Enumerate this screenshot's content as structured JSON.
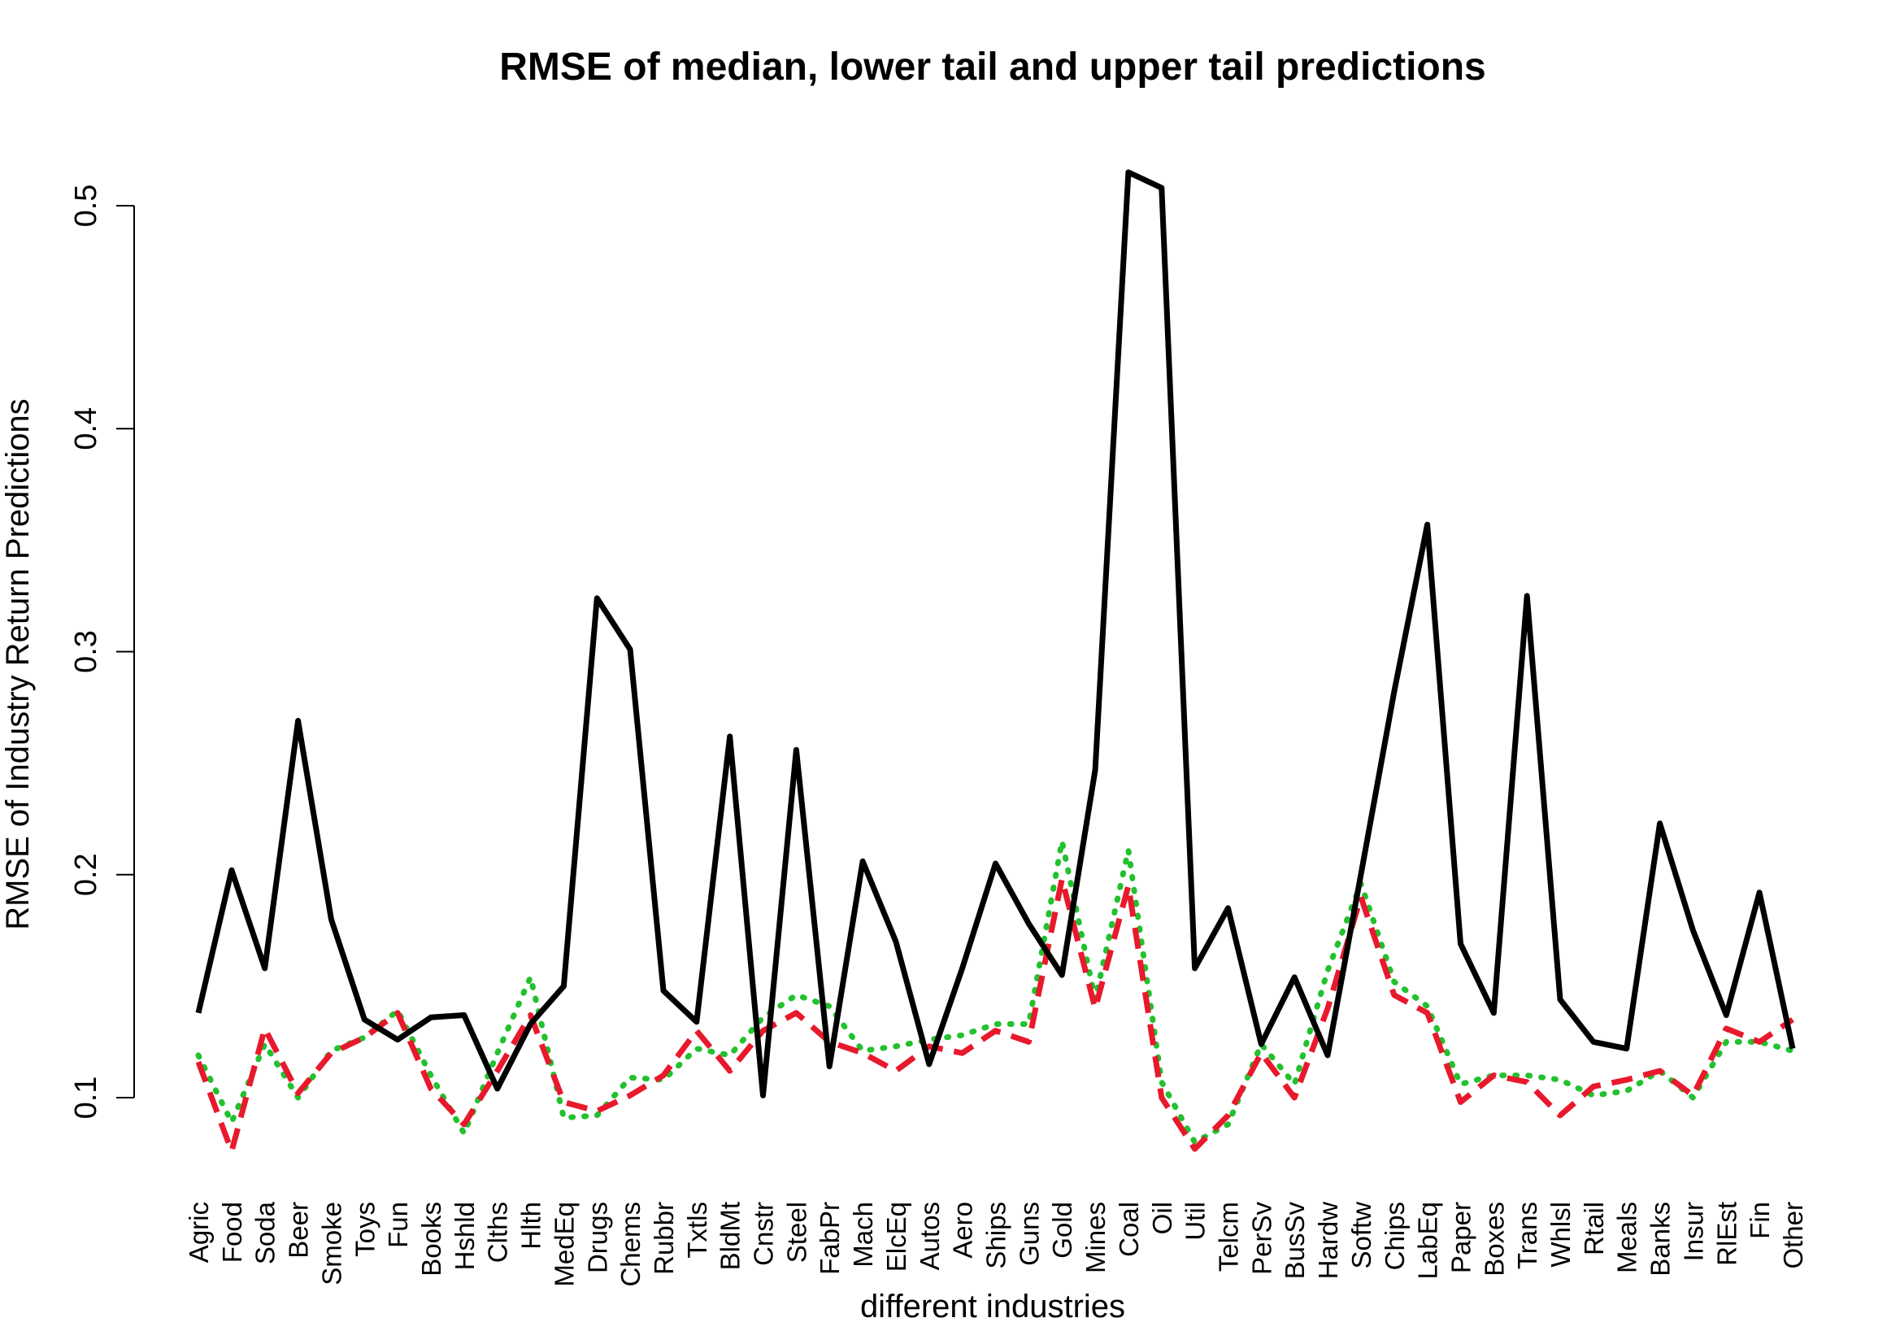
{
  "chart_data": {
    "type": "line",
    "title": "RMSE of median, lower tail and upper tail predictions",
    "xlabel": "different industries",
    "ylabel": "RMSE of Industry Return Predictions",
    "ylim": [
      0.07,
      0.52
    ],
    "yticks": [
      0.1,
      0.2,
      0.3,
      0.4,
      0.5
    ],
    "ytick_labels": [
      "0.1",
      "0.2",
      "0.3",
      "0.4",
      "0.5"
    ],
    "grid": false,
    "legend": "none",
    "categories": [
      "Agric",
      "Food",
      "Soda",
      "Beer",
      "Smoke",
      "Toys",
      "Fun",
      "Books",
      "Hshld",
      "Clths",
      "Hlth",
      "MedEq",
      "Drugs",
      "Chems",
      "Rubbr",
      "Txtls",
      "BldMt",
      "Cnstr",
      "Steel",
      "FabPr",
      "Mach",
      "ElcEq",
      "Autos",
      "Aero",
      "Ships",
      "Guns",
      "Gold",
      "Mines",
      "Coal",
      "Oil",
      "Util",
      "Telcm",
      "PerSv",
      "BusSv",
      "Hardw",
      "Softw",
      "Chips",
      "LabEq",
      "Paper",
      "Boxes",
      "Trans",
      "Whlsl",
      "Rtail",
      "Meals",
      "Banks",
      "Insur",
      "RlEst",
      "Fin",
      "Other"
    ],
    "series": [
      {
        "color": "#000000",
        "style": "solid",
        "values": [
          0.138,
          0.202,
          0.158,
          0.269,
          0.18,
          0.135,
          0.126,
          0.136,
          0.137,
          0.104,
          0.133,
          0.15,
          0.324,
          0.301,
          0.148,
          0.134,
          0.262,
          0.101,
          0.256,
          0.114,
          0.206,
          0.17,
          0.115,
          0.158,
          0.205,
          0.178,
          0.155,
          0.247,
          0.515,
          0.508,
          0.158,
          0.185,
          0.124,
          0.154,
          0.119,
          0.2,
          0.282,
          0.357,
          0.169,
          0.138,
          0.325,
          0.144,
          0.125,
          0.122,
          0.223,
          0.175,
          0.137,
          0.192,
          0.122
        ]
      },
      {
        "color": "#e8192c",
        "style": "dashed",
        "values": [
          0.116,
          0.076,
          0.131,
          0.102,
          0.12,
          0.127,
          0.138,
          0.104,
          0.088,
          0.112,
          0.137,
          0.098,
          0.094,
          0.101,
          0.11,
          0.13,
          0.112,
          0.13,
          0.138,
          0.125,
          0.12,
          0.112,
          0.123,
          0.12,
          0.13,
          0.125,
          0.198,
          0.14,
          0.195,
          0.1,
          0.077,
          0.092,
          0.12,
          0.1,
          0.14,
          0.19,
          0.146,
          0.138,
          0.098,
          0.11,
          0.107,
          0.092,
          0.105,
          0.108,
          0.112,
          0.101,
          0.131,
          0.125,
          0.135
        ]
      },
      {
        "color": "#22c12e",
        "style": "dotted",
        "values": [
          0.119,
          0.089,
          0.124,
          0.1,
          0.121,
          0.127,
          0.139,
          0.11,
          0.084,
          0.12,
          0.154,
          0.091,
          0.092,
          0.109,
          0.108,
          0.122,
          0.119,
          0.136,
          0.146,
          0.141,
          0.121,
          0.123,
          0.126,
          0.128,
          0.133,
          0.133,
          0.215,
          0.144,
          0.211,
          0.107,
          0.08,
          0.088,
          0.124,
          0.106,
          0.157,
          0.196,
          0.152,
          0.141,
          0.106,
          0.11,
          0.11,
          0.108,
          0.101,
          0.103,
          0.112,
          0.1,
          0.125,
          0.125,
          0.121
        ]
      }
    ]
  }
}
